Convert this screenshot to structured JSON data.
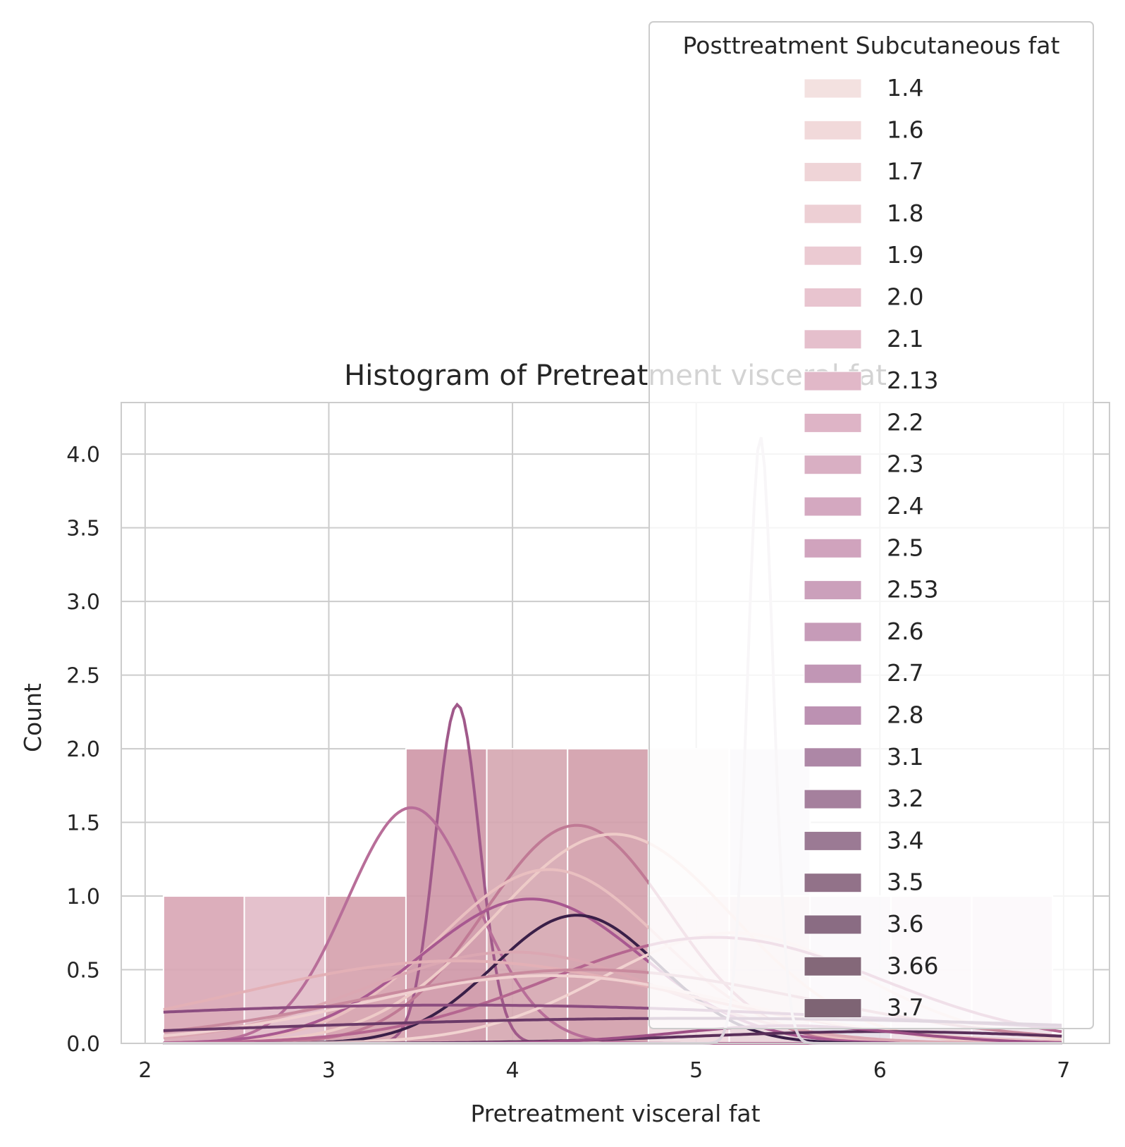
{
  "chart_data": {
    "type": "bar",
    "title": "Histogram of Pretreatment visceral fat",
    "xlabel": "Pretreatment visceral fat",
    "ylabel": "Count",
    "xlim": [
      1.87,
      7.25
    ],
    "ylim": [
      0,
      4.35
    ],
    "xticks": [
      2,
      3,
      4,
      5,
      6,
      7
    ],
    "yticks": [
      0.0,
      0.5,
      1.0,
      1.5,
      2.0,
      2.5,
      3.0,
      3.5,
      4.0
    ],
    "ytick_labels": [
      "0.0",
      "0.5",
      "1.0",
      "1.5",
      "2.0",
      "2.5",
      "3.0",
      "3.5",
      "4.0"
    ],
    "grid": true,
    "legend": {
      "title": "Posttreatment Subcutaneous fat",
      "placement": "upper right",
      "entries": [
        "1.4",
        "1.6",
        "1.7",
        "1.8",
        "1.9",
        "2.0",
        "2.1",
        "2.13",
        "2.2",
        "2.3",
        "2.4",
        "2.5",
        "2.53",
        "2.6",
        "2.7",
        "2.8",
        "3.1",
        "3.2",
        "3.4",
        "3.5",
        "3.6",
        "3.66",
        "3.7"
      ],
      "colors": [
        "#f3e1e0",
        "#f1d9da",
        "#efd4d7",
        "#edcfd4",
        "#ebcad2",
        "#e8c4cf",
        "#e5bfcc",
        "#e1b8c8",
        "#deb4c6",
        "#d9afc3",
        "#d4a8c0",
        "#d0a3bd",
        "#cba0bb",
        "#c69bb8",
        "#c196b5",
        "#bc91b2",
        "#ad87a6",
        "#a5809d",
        "#9b7a94",
        "#927289",
        "#8a6c83",
        "#846879",
        "#7e6474"
      ]
    },
    "bars": [
      {
        "x0": 2.1,
        "x1": 2.54,
        "count": 1,
        "color": "#d9a7b5"
      },
      {
        "x0": 2.54,
        "x1": 2.98,
        "count": 1,
        "color": "#e2bcc8"
      },
      {
        "x0": 2.98,
        "x1": 3.42,
        "count": 1,
        "color": "#d6a2ae"
      },
      {
        "x0": 3.42,
        "x1": 3.86,
        "count": 2,
        "color": "#cf98a8"
      },
      {
        "x0": 3.86,
        "x1": 4.3,
        "count": 2,
        "color": "#d6a8b2"
      },
      {
        "x0": 4.3,
        "x1": 4.74,
        "count": 2,
        "color": "#d3a0ab"
      },
      {
        "x0": 4.74,
        "x1": 5.18,
        "count": 1,
        "color": "#efd8dd"
      },
      {
        "x0": 5.18,
        "x1": 5.62,
        "count": 1,
        "color": "#e9d4da"
      },
      {
        "x0": 5.62,
        "x1": 6.06,
        "count": 1,
        "color": "#e6dfe8"
      },
      {
        "x0": 6.06,
        "x1": 6.5,
        "count": 1,
        "color": "#efdee6"
      },
      {
        "x0": 6.5,
        "x1": 6.94,
        "count": 1,
        "color": "#efe0e7"
      }
    ],
    "stacked_bars": [
      {
        "x0": 4.74,
        "x1": 5.18,
        "y0": 1,
        "y1": 2,
        "color": "#f5f0f0"
      },
      {
        "x0": 5.18,
        "x1": 5.62,
        "y0": 1,
        "y1": 2,
        "color": "#e9e5ec"
      }
    ],
    "kde_series": [
      {
        "label": "2.4",
        "color": "#a0598a",
        "type": "gauss",
        "mu": 3.7,
        "sigma": 0.12,
        "peak": 2.3
      },
      {
        "label": "2.5",
        "color": "#b86e99",
        "type": "gauss",
        "mu": 3.45,
        "sigma": 0.35,
        "peak": 1.6
      },
      {
        "label": "3.1",
        "color": "#c07a95",
        "type": "gauss",
        "mu": 4.35,
        "sigma": 0.5,
        "peak": 1.48
      },
      {
        "label": "1.8",
        "color": "#eecbc8",
        "type": "gauss",
        "mu": 4.55,
        "sigma": 0.65,
        "peak": 1.42
      },
      {
        "label": "1.9",
        "color": "#e9bfc0",
        "type": "gauss",
        "mu": 4.2,
        "sigma": 0.6,
        "peak": 1.18
      },
      {
        "label": "2.7",
        "color": "#a85890",
        "type": "gauss",
        "mu": 4.1,
        "sigma": 0.6,
        "peak": 0.98
      },
      {
        "label": "3.7",
        "color": "#3a1f48",
        "type": "gauss",
        "mu": 4.35,
        "sigma": 0.45,
        "peak": 0.87
      },
      {
        "label": "2.0",
        "color": "#f1d2d0",
        "type": "gauss",
        "mu": 5.2,
        "sigma": 0.7,
        "peak": 0.75
      },
      {
        "label": "2.6",
        "color": "#b56690",
        "type": "gauss",
        "mu": 5.1,
        "sigma": 0.9,
        "peak": 0.72
      },
      {
        "label": "2.2",
        "color": "#dba7b2",
        "type": "gauss",
        "mu": 4.0,
        "sigma": 0.8,
        "peak": 0.62
      },
      {
        "label": "1.7",
        "color": "#e3b0b6",
        "type": "gauss",
        "mu": 3.7,
        "sigma": 1.2,
        "peak": 0.56
      },
      {
        "label": "2.13",
        "color": "#c98a9e",
        "type": "gauss",
        "mu": 4.4,
        "sigma": 1.2,
        "peak": 0.5
      },
      {
        "label": "1.6",
        "color": "#f0d0d0",
        "type": "gauss",
        "mu": 4.2,
        "sigma": 1.0,
        "peak": 0.46
      },
      {
        "label": "3.4",
        "color": "#8c4d80",
        "type": "gauss",
        "mu": 3.7,
        "sigma": 2.5,
        "peak": 0.26
      },
      {
        "label": "3.5",
        "color": "#6b3a68",
        "type": "gauss",
        "mu": 5.0,
        "sigma": 2.5,
        "peak": 0.17
      },
      {
        "label": "3.6",
        "color": "#5a2f5a",
        "type": "gauss",
        "mu": 6.0,
        "sigma": 1.0,
        "peak": 0.08
      },
      {
        "label": "2.8",
        "color": "#9d4f85",
        "type": "gauss",
        "mu": 5.5,
        "sigma": 0.6,
        "peak": 0.12
      },
      {
        "label": "1.4",
        "color": "#dcd3dc",
        "type": "gauss",
        "mu": 5.35,
        "sigma": 0.07,
        "peak": 4.12
      }
    ]
  }
}
